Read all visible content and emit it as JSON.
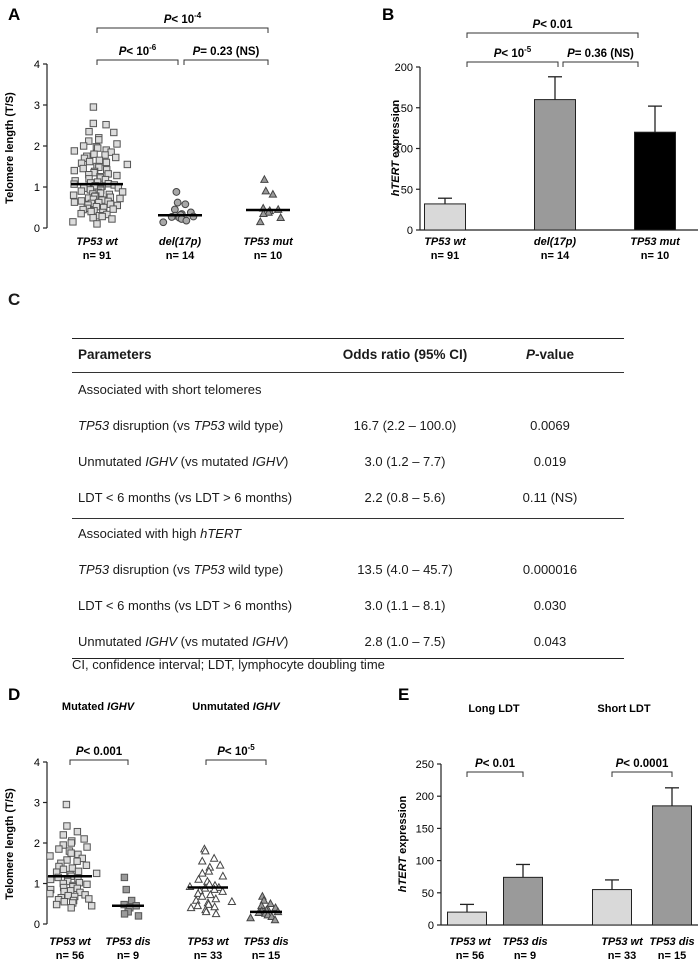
{
  "panel_a": {
    "label": "A",
    "ylabel": "Telomere length (T/S)",
    "yticks": [
      "0",
      "1",
      "2",
      "3",
      "4"
    ],
    "groups": [
      {
        "name": "TP53 wt",
        "n": "n= 91"
      },
      {
        "name": "del(17p)",
        "n": "n= 14"
      },
      {
        "name": "TP53 mut",
        "n": "n= 10"
      }
    ],
    "comparisons": [
      {
        "text": "P< 10",
        "sup": "-4"
      },
      {
        "text": "P< 10",
        "sup": "-6"
      },
      {
        "text": "P= 0.23 (NS)",
        "sup": ""
      }
    ]
  },
  "panel_b": {
    "label": "B",
    "ylabel_italic": "hTERT",
    "ylabel_rest": " expression",
    "yticks": [
      "0",
      "50",
      "100",
      "150",
      "200"
    ],
    "groups": [
      {
        "name": "TP53 wt",
        "n": "n= 91"
      },
      {
        "name": "del(17p)",
        "n": "n= 14"
      },
      {
        "name": "TP53 mut",
        "n": "n= 10"
      }
    ],
    "comparisons": [
      {
        "text": "P< 0.01",
        "sup": ""
      },
      {
        "text": "P< 10",
        "sup": "-5"
      },
      {
        "text": "P= 0.36 (NS)",
        "sup": ""
      }
    ]
  },
  "table_c": {
    "label": "C",
    "headers": [
      "Parameters",
      "Odds ratio (95% CI)",
      "P-value"
    ],
    "section1": "Associated with short telomeres",
    "rows1": [
      {
        "p1": "TP53",
        "p2": " disruption (vs ",
        "p3": "TP53",
        "p4": " wild type)",
        "or": "16.7 (2.2 – 100.0)",
        "pv": "0.0069"
      },
      {
        "p1": "Unmutated ",
        "p2": "IGHV",
        "p3": " (vs mutated ",
        "p4": "IGHV",
        "p5": ")",
        "or": "3.0 (1.2 – 7.7)",
        "pv": "0.019"
      },
      {
        "p1": "LDT < 6 months (vs LDT > 6 months)",
        "or": "2.2 (0.8 – 5.6)",
        "pv": "0.11 (NS)"
      }
    ],
    "section2_a": "Associated with high ",
    "section2_b": "hTERT",
    "rows2": [
      {
        "p1": "TP53",
        "p2": " disruption (vs ",
        "p3": "TP53",
        "p4": " wild type)",
        "or": "13.5 (4.0 – 45.7)",
        "pv": "0.000016"
      },
      {
        "p1": "LDT < 6 months (vs LDT > 6 months)",
        "or": "3.0 (1.1 – 8.1)",
        "pv": "0.030"
      },
      {
        "p1": "Unmutated ",
        "p2": "IGHV",
        "p3": " (vs mutated ",
        "p4": "IGHV",
        "p5": ")",
        "or": "2.8 (1.0 – 7.5)",
        "pv": "0.043"
      }
    ],
    "footnote": "CI, confidence interval; LDT, lymphocyte doubling time"
  },
  "panel_d": {
    "label": "D",
    "ylabel": "Telomere length (T/S)",
    "yticks": [
      "0",
      "1",
      "2",
      "3",
      "4"
    ],
    "subtitle1_a": "Mutated ",
    "subtitle1_b": "IGHV",
    "subtitle2_a": "Unmutated ",
    "subtitle2_b": "IGHV",
    "comparisons": [
      {
        "text": "P< 0.001",
        "sup": ""
      },
      {
        "text": "P< 10",
        "sup": "-5"
      }
    ],
    "groups": [
      {
        "name": "TP53 wt",
        "n": "n= 56"
      },
      {
        "name": "TP53 dis",
        "n": "n= 9"
      },
      {
        "name": "TP53 wt",
        "n": "n= 33"
      },
      {
        "name": "TP53 dis",
        "n": "n= 15"
      }
    ]
  },
  "panel_e": {
    "label": "E",
    "ylabel_italic": "hTERT",
    "ylabel_rest": " expression",
    "yticks": [
      "0",
      "50",
      "100",
      "150",
      "200",
      "250"
    ],
    "subtitle1": "Long LDT",
    "subtitle2": "Short LDT",
    "comparisons": [
      {
        "text": "P< 0.01",
        "sup": ""
      },
      {
        "text": "P< 0.0001",
        "sup": ""
      }
    ],
    "groups": [
      {
        "name": "TP53 wt",
        "n": "n= 56"
      },
      {
        "name": "TP53 dis",
        "n": "n= 9"
      },
      {
        "name": "TP53 wt",
        "n": "n= 33"
      },
      {
        "name": "TP53 dis",
        "n": "n= 15"
      }
    ]
  },
  "chart_data": [
    {
      "id": "A",
      "type": "scatter",
      "title": "",
      "xlabel": "",
      "ylabel": "Telomere length (T/S)",
      "ylim": [
        0,
        4
      ],
      "categories": [
        "TP53 wt",
        "del(17p)",
        "TP53 mut"
      ],
      "medians": [
        1.07,
        0.31,
        0.44
      ],
      "points": [
        [
          2.95,
          2.55,
          2.52,
          2.35,
          2.33,
          2.2,
          2.15,
          2.12,
          2.05,
          2.0,
          1.98,
          1.95,
          1.9,
          1.88,
          1.85,
          1.8,
          1.78,
          1.75,
          1.72,
          1.7,
          1.65,
          1.62,
          1.6,
          1.58,
          1.55,
          1.5,
          1.48,
          1.45,
          1.42,
          1.4,
          1.38,
          1.35,
          1.32,
          1.3,
          1.28,
          1.25,
          1.22,
          1.2,
          1.18,
          1.15,
          1.12,
          1.1,
          1.08,
          1.07,
          1.05,
          1.03,
          1.02,
          1.0,
          0.98,
          0.97,
          0.95,
          0.93,
          0.92,
          0.9,
          0.88,
          0.87,
          0.85,
          0.83,
          0.82,
          0.8,
          0.78,
          0.77,
          0.75,
          0.73,
          0.72,
          0.7,
          0.68,
          0.66,
          0.65,
          0.63,
          0.62,
          0.6,
          0.58,
          0.56,
          0.55,
          0.52,
          0.5,
          0.48,
          0.46,
          0.45,
          0.42,
          0.4,
          0.38,
          0.35,
          0.33,
          0.3,
          0.28,
          0.25,
          0.22,
          0.15,
          0.1
        ],
        [
          0.88,
          0.62,
          0.58,
          0.45,
          0.38,
          0.34,
          0.32,
          0.3,
          0.28,
          0.27,
          0.25,
          0.22,
          0.18,
          0.14
        ],
        [
          1.18,
          0.9,
          0.82,
          0.48,
          0.45,
          0.42,
          0.38,
          0.35,
          0.25,
          0.15
        ]
      ],
      "comparisons": [
        {
          "pair": [
            1,
            3
          ],
          "label": "P< 10^-4"
        },
        {
          "pair": [
            1,
            2
          ],
          "label": "P< 10^-6"
        },
        {
          "pair": [
            2,
            3
          ],
          "label": "P= 0.23 (NS)"
        }
      ]
    },
    {
      "id": "B",
      "type": "bar",
      "ylabel": "hTERT expression",
      "ylim": [
        0,
        200
      ],
      "categories": [
        "TP53 wt",
        "del(17p)",
        "TP53 mut"
      ],
      "values": [
        32,
        160,
        120
      ],
      "errors": [
        7,
        28,
        32
      ],
      "colors": [
        "#d9d9d9",
        "#9a9a9a",
        "#000000"
      ],
      "comparisons": [
        {
          "pair": [
            1,
            3
          ],
          "label": "P< 0.01"
        },
        {
          "pair": [
            1,
            2
          ],
          "label": "P< 10^-5"
        },
        {
          "pair": [
            2,
            3
          ],
          "label": "P= 0.36 (NS)"
        }
      ]
    },
    {
      "id": "D",
      "type": "scatter",
      "ylabel": "Telomere length (T/S)",
      "ylim": [
        0,
        4
      ],
      "categories": [
        "TP53 wt",
        "TP53 dis",
        "TP53 wt",
        "TP53 dis"
      ],
      "medians": [
        1.18,
        0.45,
        0.9,
        0.3
      ],
      "points": [
        [
          2.95,
          2.42,
          2.28,
          2.2,
          2.1,
          2.05,
          2.0,
          1.95,
          1.9,
          1.85,
          1.8,
          1.75,
          1.72,
          1.68,
          1.62,
          1.58,
          1.55,
          1.5,
          1.45,
          1.42,
          1.38,
          1.35,
          1.3,
          1.28,
          1.25,
          1.22,
          1.18,
          1.15,
          1.12,
          1.1,
          1.08,
          1.05,
          1.02,
          1.0,
          0.98,
          0.95,
          0.92,
          0.9,
          0.88,
          0.85,
          0.82,
          0.8,
          0.78,
          0.75,
          0.72,
          0.7,
          0.68,
          0.65,
          0.62,
          0.6,
          0.58,
          0.55,
          0.52,
          0.48,
          0.45,
          0.4
        ],
        [
          1.15,
          0.85,
          0.58,
          0.48,
          0.45,
          0.4,
          0.3,
          0.25,
          0.2
        ],
        [
          1.85,
          1.8,
          1.62,
          1.55,
          1.45,
          1.4,
          1.3,
          1.25,
          1.18,
          1.1,
          1.05,
          0.98,
          0.95,
          0.92,
          0.9,
          0.88,
          0.85,
          0.82,
          0.8,
          0.75,
          0.72,
          0.68,
          0.62,
          0.58,
          0.55,
          0.52,
          0.48,
          0.45,
          0.42,
          0.4,
          0.35,
          0.3,
          0.25
        ],
        [
          0.68,
          0.58,
          0.5,
          0.45,
          0.4,
          0.36,
          0.34,
          0.32,
          0.3,
          0.28,
          0.26,
          0.22,
          0.18,
          0.15,
          0.1
        ]
      ],
      "comparisons": [
        {
          "pair": [
            1,
            2
          ],
          "label": "P< 0.001"
        },
        {
          "pair": [
            3,
            4
          ],
          "label": "P< 10^-5"
        }
      ]
    },
    {
      "id": "E",
      "type": "bar",
      "ylabel": "hTERT expression",
      "ylim": [
        0,
        250
      ],
      "categories": [
        "TP53 wt",
        "TP53 dis",
        "TP53 wt",
        "TP53 dis"
      ],
      "values": [
        20,
        74,
        55,
        185
      ],
      "errors": [
        12,
        20,
        15,
        28
      ],
      "colors": [
        "#d9d9d9",
        "#9a9a9a",
        "#d9d9d9",
        "#9a9a9a"
      ],
      "comparisons": [
        {
          "pair": [
            1,
            2
          ],
          "label": "P< 0.01"
        },
        {
          "pair": [
            3,
            4
          ],
          "label": "P< 0.0001"
        }
      ]
    }
  ]
}
